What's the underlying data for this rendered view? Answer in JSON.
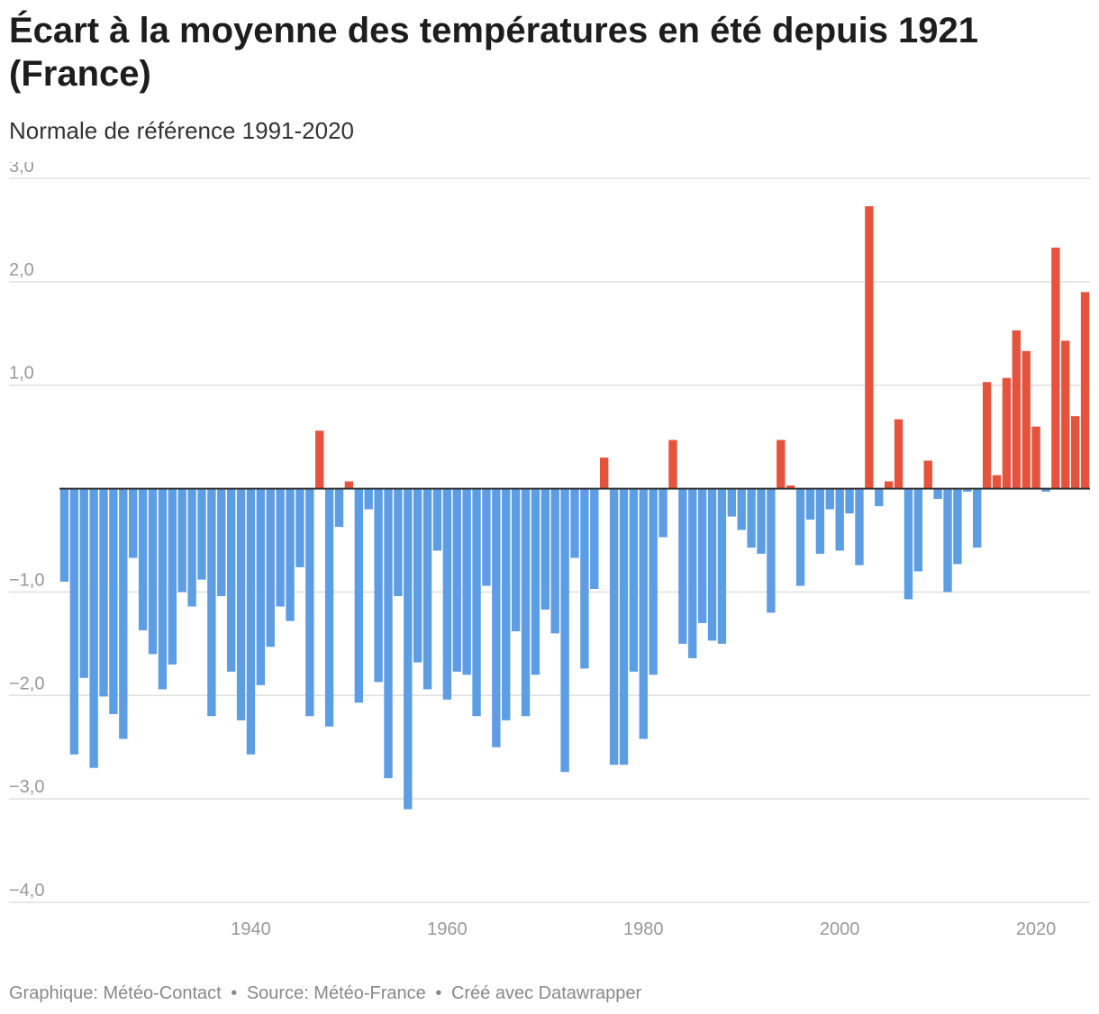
{
  "title": "Écart à la moyenne des températures en été depuis 1921 (France)",
  "subtitle": "Normale de référence 1991-2020",
  "footer": {
    "graphic": "Graphique: Météo-Contact",
    "source": "Source: Météo-France",
    "created": "Créé avec Datawrapper",
    "separator": "•"
  },
  "colors": {
    "positive": "#e6533c",
    "negative": "#5c9de3",
    "grid": "#e0e0e0",
    "baseline": "#333333",
    "tick_label": "#999999"
  },
  "chart_data": {
    "type": "bar",
    "title": "Écart à la moyenne des températures en été depuis 1921 (France)",
    "subtitle": "Normale de référence 1991-2020",
    "xlabel": "",
    "ylabel": "",
    "x_start": 1921,
    "ylim": [
      -4,
      3
    ],
    "y_ticks": [
      3,
      2,
      1,
      -1,
      -2,
      -3,
      -4
    ],
    "y_tick_labels": [
      "3,0",
      "2,0",
      "1,0",
      "−1,0",
      "−2,0",
      "−3,0",
      "−4,0"
    ],
    "x_ticks": [
      1940,
      1960,
      1980,
      2000,
      2020
    ],
    "x_tick_labels": [
      "1940",
      "1960",
      "1980",
      "2000",
      "2020"
    ],
    "grid": true,
    "legend": "none",
    "years": [
      1921,
      1922,
      1923,
      1924,
      1925,
      1926,
      1927,
      1928,
      1929,
      1930,
      1931,
      1932,
      1933,
      1934,
      1935,
      1936,
      1937,
      1938,
      1939,
      1940,
      1941,
      1942,
      1943,
      1944,
      1945,
      1946,
      1947,
      1948,
      1949,
      1950,
      1951,
      1952,
      1953,
      1954,
      1955,
      1956,
      1957,
      1958,
      1959,
      1960,
      1961,
      1962,
      1963,
      1964,
      1965,
      1966,
      1967,
      1968,
      1969,
      1970,
      1971,
      1972,
      1973,
      1974,
      1975,
      1976,
      1977,
      1978,
      1979,
      1980,
      1981,
      1982,
      1983,
      1984,
      1985,
      1986,
      1987,
      1988,
      1989,
      1990,
      1991,
      1992,
      1993,
      1994,
      1995,
      1996,
      1997,
      1998,
      1999,
      2000,
      2001,
      2002,
      2003,
      2004,
      2005,
      2006,
      2007,
      2008,
      2009,
      2010,
      2011,
      2012,
      2013,
      2014,
      2015,
      2016,
      2017,
      2018,
      2019,
      2020,
      2021,
      2022,
      2023,
      2024,
      2025
    ],
    "values": [
      -0.9,
      -2.57,
      -1.83,
      -2.7,
      -2.01,
      -2.18,
      -2.42,
      -0.67,
      -1.37,
      -1.6,
      -1.94,
      -1.7,
      -1.0,
      -1.14,
      -0.88,
      -2.2,
      -1.04,
      -1.77,
      -2.24,
      -2.57,
      -1.9,
      -1.53,
      -1.14,
      -1.28,
      -0.76,
      -2.2,
      0.56,
      -2.3,
      -0.37,
      0.07,
      -2.07,
      -0.2,
      -1.87,
      -2.8,
      -1.04,
      -3.1,
      -1.68,
      -1.94,
      -0.6,
      -2.04,
      -1.77,
      -1.8,
      -2.2,
      -0.94,
      -2.5,
      -2.24,
      -1.38,
      -2.2,
      -1.8,
      -1.17,
      -1.4,
      -2.74,
      -0.67,
      -1.74,
      -0.97,
      0.3,
      -2.67,
      -2.67,
      -1.77,
      -2.42,
      -1.8,
      -0.47,
      0.47,
      -1.5,
      -1.64,
      -1.3,
      -1.47,
      -1.5,
      -0.27,
      -0.4,
      -0.57,
      -0.63,
      -1.2,
      0.47,
      0.03,
      -0.94,
      -0.3,
      -0.63,
      -0.2,
      -0.6,
      -0.24,
      -0.74,
      2.73,
      -0.17,
      0.07,
      0.67,
      -1.07,
      -0.8,
      0.27,
      -0.1,
      -1.0,
      -0.73,
      -0.03,
      -0.57,
      1.03,
      0.13,
      1.07,
      1.53,
      1.33,
      0.6,
      -0.03,
      2.33,
      1.43,
      0.7,
      1.9
    ]
  }
}
